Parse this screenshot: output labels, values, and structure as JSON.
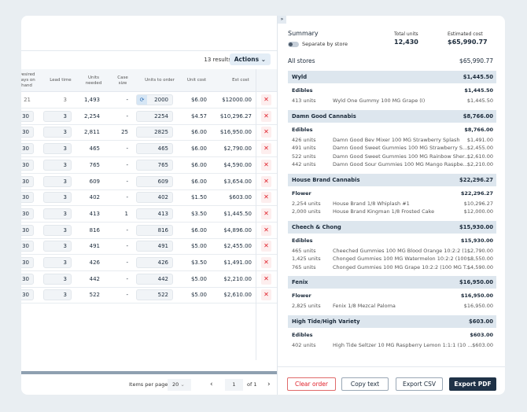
{
  "table": {
    "results": "13 results",
    "actions": "Actions",
    "headers": {
      "desired": "Desired days on hand",
      "lead": "Lead time",
      "needed": "Units needed",
      "case": "Case size",
      "order": "Units to order",
      "unit_cost": "Unit cost",
      "est": "Est cost"
    },
    "rows": [
      {
        "days": "21",
        "lead": "3",
        "needed": "1,493",
        "case": "-",
        "order": "2000",
        "unit_cost": "$6.00",
        "est": "$12000.00",
        "editable": false
      },
      {
        "days": "30",
        "lead": "3",
        "needed": "2,254",
        "case": "-",
        "order": "2254",
        "unit_cost": "$4.57",
        "est": "$10,296.27",
        "editable": true
      },
      {
        "days": "30",
        "lead": "3",
        "needed": "2,811",
        "case": "25",
        "order": "2825",
        "unit_cost": "$6.00",
        "est": "$16,950.00",
        "editable": true
      },
      {
        "days": "30",
        "lead": "3",
        "needed": "465",
        "case": "-",
        "order": "465",
        "unit_cost": "$6.00",
        "est": "$2,790.00",
        "editable": true
      },
      {
        "days": "30",
        "lead": "3",
        "needed": "765",
        "case": "-",
        "order": "765",
        "unit_cost": "$6.00",
        "est": "$4,590.00",
        "editable": true
      },
      {
        "days": "30",
        "lead": "3",
        "needed": "609",
        "case": "-",
        "order": "609",
        "unit_cost": "$6.00",
        "est": "$3,654.00",
        "editable": true
      },
      {
        "days": "30",
        "lead": "3",
        "needed": "402",
        "case": "-",
        "order": "402",
        "unit_cost": "$1.50",
        "est": "$603.00",
        "editable": true
      },
      {
        "days": "30",
        "lead": "3",
        "needed": "413",
        "case": "1",
        "order": "413",
        "unit_cost": "$3.50",
        "est": "$1,445.50",
        "editable": true
      },
      {
        "days": "30",
        "lead": "3",
        "needed": "816",
        "case": "-",
        "order": "816",
        "unit_cost": "$6.00",
        "est": "$4,896.00",
        "editable": true
      },
      {
        "days": "30",
        "lead": "3",
        "needed": "491",
        "case": "-",
        "order": "491",
        "unit_cost": "$5.00",
        "est": "$2,455.00",
        "editable": true
      },
      {
        "days": "30",
        "lead": "3",
        "needed": "426",
        "case": "-",
        "order": "426",
        "unit_cost": "$3.50",
        "est": "$1,491.00",
        "editable": true
      },
      {
        "days": "30",
        "lead": "3",
        "needed": "442",
        "case": "-",
        "order": "442",
        "unit_cost": "$5.00",
        "est": "$2,210.00",
        "editable": true
      },
      {
        "days": "30",
        "lead": "3",
        "needed": "522",
        "case": "-",
        "order": "522",
        "unit_cost": "$5.00",
        "est": "$2,610.00",
        "editable": true
      }
    ]
  },
  "pagination": {
    "items_per_page_label": "Items per page",
    "items_per_page": "20",
    "page": "1",
    "of": "of 1"
  },
  "summary": {
    "title": "Summary",
    "separate_label": "Separate by store",
    "total_units_label": "Total units",
    "total_units": "12,430",
    "est_cost_label": "Estimated cost",
    "est_cost": "$65,990.77",
    "all_stores_label": "All stores",
    "all_stores": "$65,990.77",
    "brands": [
      {
        "name": "Wyld",
        "total": "$1,445.50",
        "category": "Edibles",
        "cat_total": "$1,445.50",
        "items": [
          {
            "units": "413 units",
            "name": "Wyld One Gummy 100 MG Grape (I)",
            "cost": "$1,445.50"
          }
        ]
      },
      {
        "name": "Damn Good Cannabis",
        "total": "$8,766.00",
        "category": "Edibles",
        "cat_total": "$8,766.00",
        "items": [
          {
            "units": "426 units",
            "name": "Damn Good Bev Mixer 100 MG Strawberry Splash",
            "cost": "$1,491.00"
          },
          {
            "units": "491 units",
            "name": "Damn Good Sweet Gummies 100 MG Strawberry S...",
            "cost": "$2,455.00"
          },
          {
            "units": "522 units",
            "name": "Damn Good Sweet Gummies 100 MG Rainbow Sher...",
            "cost": "$2,610.00"
          },
          {
            "units": "442 units",
            "name": "Damn Good Sour Gummies 100 MG Mango Raspbe...",
            "cost": "$2,210.00"
          }
        ]
      },
      {
        "name": "House Brand Cannabis",
        "total": "$22,296.27",
        "category": "Flower",
        "cat_total": "$22,296.27",
        "items": [
          {
            "units": "2,254 units",
            "name": "House Brand 1/8 Whiplash #1",
            "cost": "$10,296.27"
          },
          {
            "units": "2,000 units",
            "name": "House Brand Kingman 1/8 Frosted Cake",
            "cost": "$12,000.00"
          }
        ]
      },
      {
        "name": "Cheech & Chong",
        "total": "$15,930.00",
        "category": "Edibles",
        "cat_total": "$15,930.00",
        "items": [
          {
            "units": "465 units",
            "name": "Cheeched Gummies 100 MG Blood Orange 10:2:2 (1...",
            "cost": "$2,790.00"
          },
          {
            "units": "1,425 units",
            "name": "Chonged Gummies 100 MG Watermelon 10:2:2 (100 ...",
            "cost": "$8,550.00"
          },
          {
            "units": "765 units",
            "name": "Chonged Gummies 100 MG Grape 10:2:2 (100 MG T...",
            "cost": "$4,590.00"
          }
        ]
      },
      {
        "name": "Fenix",
        "total": "$16,950.00",
        "category": "Flower",
        "cat_total": "$16,950.00",
        "items": [
          {
            "units": "2,825 units",
            "name": "Fenix 1/8 Mezcal Paloma",
            "cost": "$16,950.00"
          }
        ]
      },
      {
        "name": "High Tide/High Variety",
        "total": "$603.00",
        "category": "Edibles",
        "cat_total": "$603.00",
        "items": [
          {
            "units": "402 units",
            "name": "High Tide Seltzer 10 MG Raspberry Lemon 1:1:1 (10 ...",
            "cost": "$603.00"
          }
        ]
      }
    ],
    "buttons": {
      "clear": "Clear order",
      "copy": "Copy text",
      "csv": "Export CSV",
      "pdf": "Export PDF"
    }
  },
  "colors": {
    "accent_dark": "#1f3247",
    "danger": "#e0202a",
    "band": "#dde6ee"
  }
}
